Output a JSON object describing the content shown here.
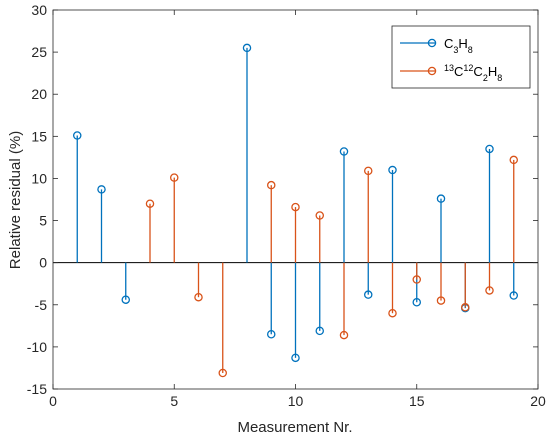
{
  "chart_data": {
    "type": "stem",
    "title": "",
    "xlabel": "Measurement Nr.",
    "ylabel": "Relative residual (%)",
    "xlim": [
      0,
      20
    ],
    "ylim": [
      -15,
      30
    ],
    "xticks": [
      0,
      5,
      10,
      15,
      20
    ],
    "yticks": [
      -15,
      -10,
      -5,
      0,
      5,
      10,
      15,
      20,
      25,
      30
    ],
    "grid": false,
    "legend_position": "top-right",
    "series": [
      {
        "name": "C3H8",
        "label_parts": [
          [
            "C",
            ""
          ],
          [
            "3",
            "sub"
          ],
          [
            "H",
            ""
          ],
          [
            "8",
            "sub"
          ]
        ],
        "color": "#0072BD",
        "points": [
          {
            "x": 1,
            "y": 15.1
          },
          {
            "x": 2,
            "y": 8.7
          },
          {
            "x": 3,
            "y": -4.4
          },
          {
            "x": 8,
            "y": 25.5
          },
          {
            "x": 9,
            "y": -8.5
          },
          {
            "x": 10,
            "y": -11.3
          },
          {
            "x": 11,
            "y": -8.1
          },
          {
            "x": 12,
            "y": 13.2
          },
          {
            "x": 13,
            "y": -3.8
          },
          {
            "x": 14,
            "y": 11.0
          },
          {
            "x": 15,
            "y": -4.7
          },
          {
            "x": 16,
            "y": 7.6
          },
          {
            "x": 17,
            "y": -5.4
          },
          {
            "x": 18,
            "y": 13.5
          },
          {
            "x": 19,
            "y": -3.9
          }
        ]
      },
      {
        "name": "13C12C2H8",
        "label_parts": [
          [
            "13",
            "sup"
          ],
          [
            "C",
            ""
          ],
          [
            "12",
            "sup"
          ],
          [
            "C",
            ""
          ],
          [
            "2",
            "sub"
          ],
          [
            "H",
            ""
          ],
          [
            "8",
            "sub"
          ]
        ],
        "color": "#D95319",
        "points": [
          {
            "x": 4,
            "y": 7.0
          },
          {
            "x": 5,
            "y": 10.1
          },
          {
            "x": 6,
            "y": -4.1
          },
          {
            "x": 7,
            "y": -13.1
          },
          {
            "x": 9,
            "y": 9.2
          },
          {
            "x": 10,
            "y": 6.6
          },
          {
            "x": 11,
            "y": 5.6
          },
          {
            "x": 12,
            "y": -8.6
          },
          {
            "x": 13,
            "y": 10.9
          },
          {
            "x": 14,
            "y": -6.0
          },
          {
            "x": 15,
            "y": -2.0
          },
          {
            "x": 16,
            "y": -4.5
          },
          {
            "x": 17,
            "y": -5.3
          },
          {
            "x": 18,
            "y": -3.3
          },
          {
            "x": 19,
            "y": 12.2
          }
        ]
      }
    ]
  }
}
